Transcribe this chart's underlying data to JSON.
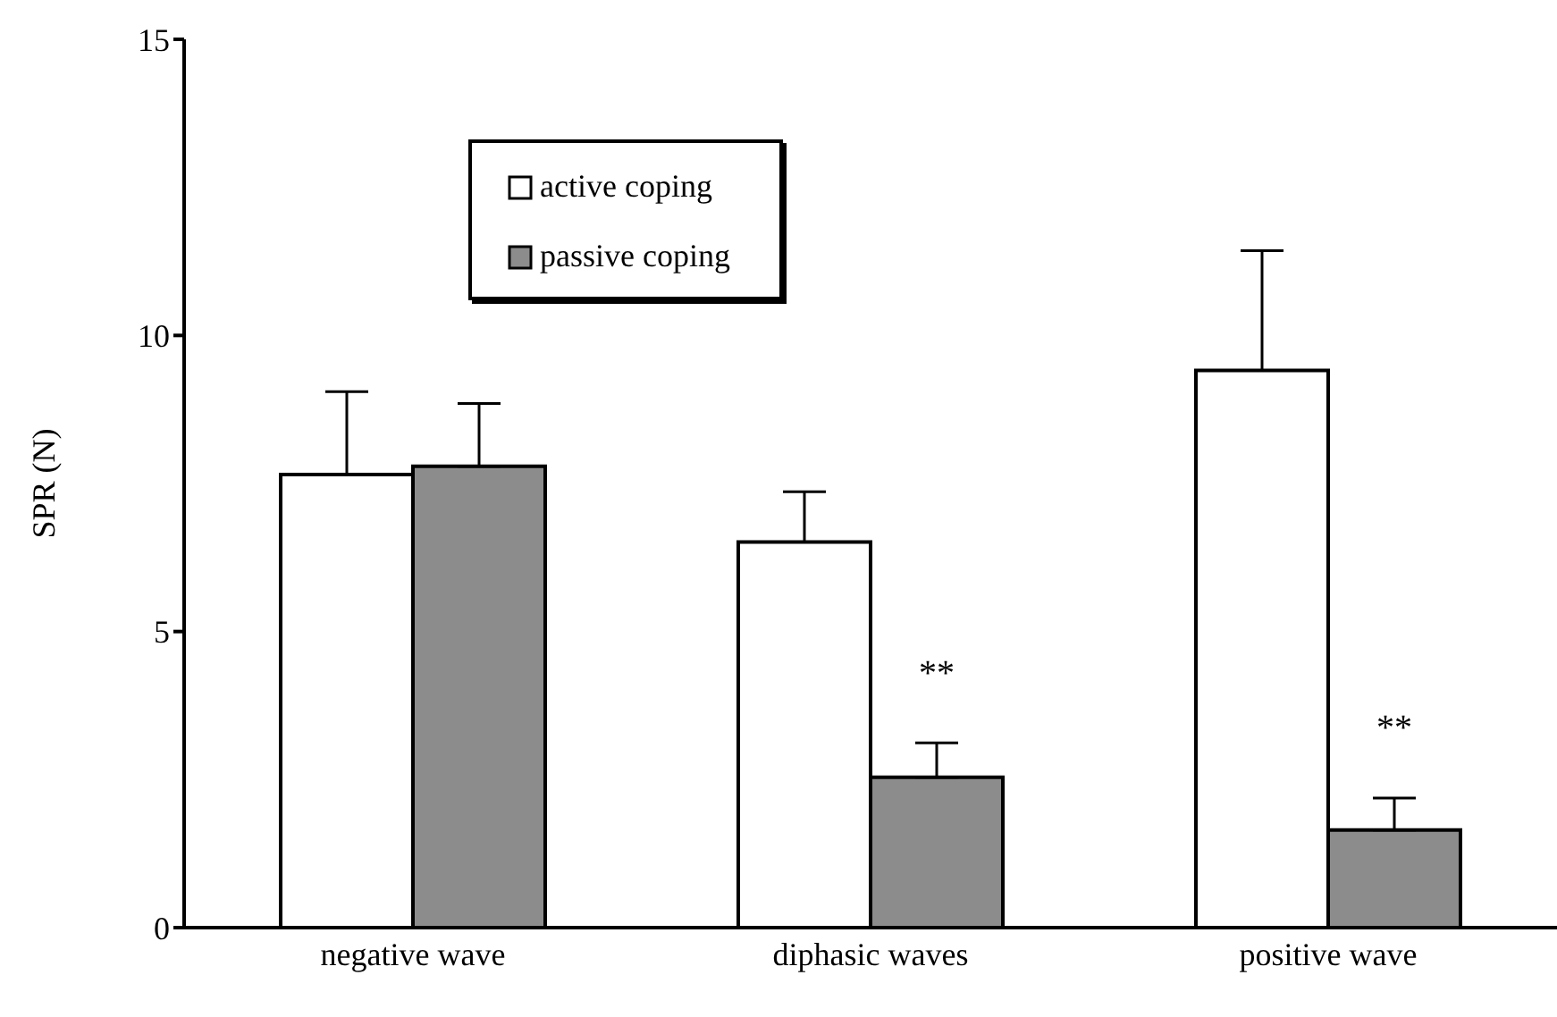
{
  "chart_data": {
    "type": "bar",
    "ylabel": "SPR (N)",
    "categories": [
      "negative wave",
      "diphasic waves",
      "positive wave"
    ],
    "series": [
      {
        "name": "active coping",
        "color": "#ffffff",
        "values": [
          7.65,
          6.51,
          9.41
        ],
        "errors": [
          [
            7.65,
            9.05
          ],
          [
            6.51,
            7.36
          ],
          [
            9.41,
            11.43
          ]
        ]
      },
      {
        "name": "passive coping",
        "color": "#8c8c8c",
        "values": [
          7.79,
          2.54,
          1.65
        ],
        "errors": [
          [
            7.79,
            8.85
          ],
          [
            2.54,
            3.12
          ],
          [
            1.65,
            2.19
          ]
        ]
      }
    ],
    "ylim": [
      0,
      15
    ],
    "yticks": [
      0,
      5,
      10,
      15
    ],
    "grid": false,
    "legend": "top",
    "annotations": [
      {
        "text": "**",
        "x": "diphasic waves",
        "y": 4.24
      },
      {
        "text": "**",
        "x": "positive wave",
        "y": 3.33
      }
    ]
  }
}
